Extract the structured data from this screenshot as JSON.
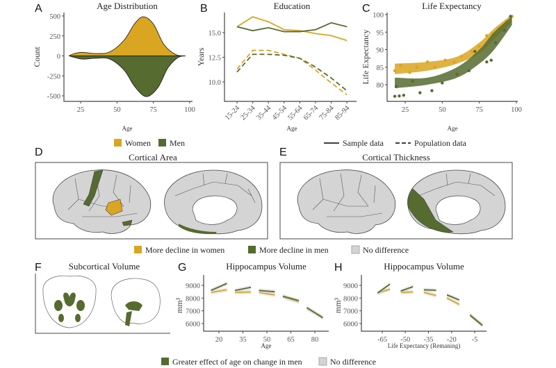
{
  "colors": {
    "women": "#daa520",
    "men": "#556b2f",
    "no_difference": "#d3d3d3"
  },
  "panel_labels": {
    "a": "A",
    "b": "B",
    "c": "C",
    "d": "D",
    "e": "E",
    "f": "F",
    "g": "G",
    "h": "H"
  },
  "legend_top": {
    "women": "Women",
    "men": "Men",
    "sample": "Sample data",
    "population": "Population data"
  },
  "legend_middle": {
    "women": "More decline in women",
    "men": "More decline in men",
    "none": "No difference"
  },
  "legend_bottom": {
    "men": "Greater effect of age on change in men",
    "none": "No difference"
  },
  "brain_panels": {
    "d": {
      "title": "Cortical Area",
      "highlighted": [
        "men: lateral precentral region",
        "women: lateral temporal region",
        "men: medial lingual region"
      ]
    },
    "e": {
      "title": "Cortical Thickness",
      "highlighted": [
        "men: medial occipital region"
      ]
    },
    "f": {
      "title": "Subcortical Volume",
      "highlighted": [
        "men: subcortical structures"
      ]
    }
  },
  "chart_data": [
    {
      "id": "A",
      "type": "area",
      "title": "Age Distribution",
      "xlabel": "Age",
      "ylabel": "Count",
      "xlim": [
        15,
        100
      ],
      "ylim": [
        -550,
        550
      ],
      "xticks": [
        "25",
        "50",
        "75",
        "100"
      ],
      "yticks": [
        "500",
        "250",
        "0",
        "-250",
        "-500"
      ],
      "series": [
        {
          "name": "Women",
          "x": [
            17,
            20,
            26,
            35,
            45,
            55,
            62,
            68,
            75,
            82,
            90,
            97
          ],
          "y": [
            0,
            25,
            45,
            30,
            50,
            200,
            400,
            490,
            400,
            150,
            20,
            0
          ]
        },
        {
          "name": "Men",
          "x": [
            17,
            26,
            35,
            45,
            55,
            62,
            70,
            78,
            85,
            92,
            97
          ],
          "y": [
            0,
            -40,
            -30,
            -40,
            -180,
            -380,
            -510,
            -400,
            -150,
            -20,
            0
          ]
        }
      ]
    },
    {
      "id": "B",
      "type": "line",
      "title": "Education",
      "xlabel": "Age",
      "ylabel": "Years",
      "ylim": [
        8.2,
        17.2
      ],
      "yticks": [
        "15.0",
        "12.5",
        "10.0"
      ],
      "categories": [
        "15-24",
        "25-34",
        "35-44",
        "45-54",
        "55-64",
        "65-74",
        "75-84",
        "85-94"
      ],
      "series": [
        {
          "name": "Women",
          "kind": "Sample data",
          "values": [
            15.6,
            16.6,
            16.1,
            15.3,
            15.2,
            14.9,
            14.7,
            14.2
          ]
        },
        {
          "name": "Men",
          "kind": "Sample data",
          "values": [
            15.6,
            15.2,
            15.5,
            15.1,
            15.1,
            15.3,
            16.0,
            15.6
          ]
        },
        {
          "name": "Women",
          "kind": "Population data",
          "values": [
            11.3,
            13.2,
            13.2,
            12.8,
            12.4,
            11.2,
            9.9,
            8.7
          ]
        },
        {
          "name": "Men",
          "kind": "Population data",
          "values": [
            11.0,
            12.8,
            12.8,
            12.7,
            12.4,
            11.5,
            10.4,
            9.1
          ]
        }
      ]
    },
    {
      "id": "C",
      "type": "scatter",
      "title": "Life Expectancy",
      "xlabel": "Age",
      "ylabel": "Life Expectancy",
      "xlim": [
        15,
        100
      ],
      "ylim": [
        75.5,
        100.5
      ],
      "xticks": [
        "25",
        "50",
        "75",
        "100"
      ],
      "yticks": [
        "100",
        "95",
        "90",
        "85",
        "80"
      ],
      "series": [
        {
          "name": "Women",
          "band_x": [
            18,
            40,
            60,
            75,
            85,
            97
          ],
          "band_low": [
            83,
            84,
            86,
            89,
            93,
            98
          ],
          "band_high": [
            86,
            86.5,
            88,
            92,
            96,
            100
          ],
          "points": [
            [
              18,
              84
            ],
            [
              22,
              85.5
            ],
            [
              28,
              83.5
            ],
            [
              33,
              85
            ],
            [
              40,
              86.5
            ],
            [
              45,
              85
            ],
            [
              52,
              87
            ],
            [
              58,
              86.5
            ],
            [
              63,
              88
            ],
            [
              70,
              89.5
            ],
            [
              75,
              91
            ],
            [
              80,
              94
            ],
            [
              84,
              94.5
            ],
            [
              88,
              96
            ],
            [
              93,
              98
            ],
            [
              97,
              99.5
            ]
          ]
        },
        {
          "name": "Men",
          "band_x": [
            18,
            40,
            60,
            75,
            85,
            97
          ],
          "band_low": [
            79,
            80,
            82,
            86,
            90,
            97
          ],
          "band_high": [
            82,
            82,
            85,
            90,
            95,
            99.5
          ],
          "points": [
            [
              18,
              76.7
            ],
            [
              21,
              76.8
            ],
            [
              24,
              77
            ],
            [
              35,
              77.7
            ],
            [
              43,
              78.3
            ],
            [
              19,
              79.5
            ],
            [
              30,
              81
            ],
            [
              50,
              80.5
            ],
            [
              60,
              83
            ],
            [
              68,
              84
            ],
            [
              72,
              89.5
            ],
            [
              80,
              86.5
            ],
            [
              83,
              87
            ],
            [
              86,
              92
            ],
            [
              92,
              95.5
            ],
            [
              96,
              99.5
            ]
          ]
        }
      ]
    },
    {
      "id": "G",
      "type": "line",
      "title": "Hippocampus Volume",
      "xlabel": "Age",
      "ylabel": "mm³",
      "xlim": [
        12,
        88
      ],
      "ylim": [
        5400,
        9800
      ],
      "xticks": [
        "20",
        "35",
        "50",
        "65",
        "80"
      ],
      "yticks": [
        "9000",
        "8000",
        "7000",
        "6000"
      ],
      "series": [
        {
          "name": "Women",
          "segments": [
            [
              15,
              8450,
              25,
              8650
            ],
            [
              30,
              8450,
              40,
              8480
            ],
            [
              45,
              8450,
              55,
              8250
            ],
            [
              60,
              8100,
              70,
              7700
            ],
            [
              75,
              7200,
              85,
              6500
            ]
          ]
        },
        {
          "name": "Men",
          "segments": [
            [
              15,
              8600,
              25,
              9150
            ],
            [
              30,
              8600,
              40,
              8850
            ],
            [
              45,
              8600,
              55,
              8500
            ],
            [
              60,
              8150,
              70,
              7800
            ],
            [
              75,
              7250,
              85,
              6450
            ]
          ]
        }
      ]
    },
    {
      "id": "H",
      "type": "line",
      "title": "Hippocampus Volume",
      "xlabel": "Life Expectancy (Remaning)",
      "ylabel": "mm³",
      "xlim": [
        -78,
        3
      ],
      "ylim": [
        5400,
        9800
      ],
      "xticks": [
        "-65",
        "-50",
        "-35",
        "-20",
        "-5"
      ],
      "yticks": [
        "9000",
        "8000",
        "7000",
        "6000"
      ],
      "series": [
        {
          "name": "Women",
          "segments": [
            [
              -68,
              8400,
              -60,
              8700
            ],
            [
              -53,
              8450,
              -45,
              8480
            ],
            [
              -38,
              8450,
              -30,
              8200
            ],
            [
              -23,
              8000,
              -15,
              7500
            ],
            [
              -8,
              6700,
              0,
              5900
            ]
          ]
        },
        {
          "name": "Men",
          "segments": [
            [
              -68,
              8400,
              -60,
              9100
            ],
            [
              -53,
              8550,
              -45,
              8900
            ],
            [
              -38,
              8650,
              -30,
              8620
            ],
            [
              -23,
              8250,
              -15,
              7850
            ],
            [
              -8,
              6650,
              0,
              5850
            ]
          ]
        }
      ]
    }
  ]
}
